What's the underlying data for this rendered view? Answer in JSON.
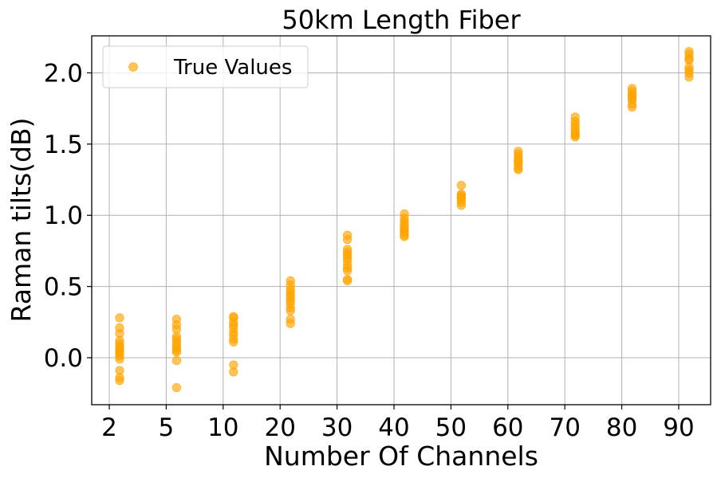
{
  "chart_data": {
    "type": "scatter",
    "title": "50km Length Fiber",
    "xlabel": "Number Of Channels",
    "ylabel": "Raman tilts(dB)",
    "x_tick_labels": [
      "2",
      "5",
      "10",
      "20",
      "30",
      "40",
      "50",
      "60",
      "70",
      "80",
      "90"
    ],
    "y_ticks": [
      0.0,
      0.5,
      1.0,
      1.5,
      2.0
    ],
    "y_tick_labels": [
      "0.0",
      "0.5",
      "1.0",
      "1.5",
      "2.0"
    ],
    "ylim": [
      -0.33,
      2.26
    ],
    "grid": true,
    "legend": {
      "position": "top-left",
      "entries": [
        "True Values"
      ]
    },
    "series": [
      {
        "name": "True Values",
        "color": "#ffa500",
        "groups": [
          {
            "x": "2",
            "y": [
              0.28,
              0.21,
              0.17,
              0.12,
              0.1,
              0.08,
              0.07,
              0.05,
              0.04,
              0.03,
              0.01,
              -0.01,
              -0.09,
              -0.14,
              -0.16
            ]
          },
          {
            "x": "5",
            "y": [
              0.27,
              0.23,
              0.2,
              0.15,
              0.13,
              0.11,
              0.09,
              0.07,
              0.05,
              0.04,
              -0.02,
              -0.21
            ]
          },
          {
            "x": "10",
            "y": [
              0.29,
              0.28,
              0.25,
              0.23,
              0.21,
              0.18,
              0.16,
              0.13,
              0.11,
              -0.05,
              -0.1
            ]
          },
          {
            "x": "20",
            "y": [
              0.54,
              0.51,
              0.48,
              0.46,
              0.44,
              0.42,
              0.4,
              0.38,
              0.35,
              0.33,
              0.27,
              0.24
            ]
          },
          {
            "x": "30",
            "y": [
              0.86,
              0.83,
              0.76,
              0.74,
              0.72,
              0.7,
              0.68,
              0.65,
              0.63,
              0.61,
              0.55,
              0.54
            ]
          },
          {
            "x": "40",
            "y": [
              1.01,
              0.98,
              0.96,
              0.94,
              0.92,
              0.91,
              0.9,
              0.89,
              0.88,
              0.86,
              0.85
            ]
          },
          {
            "x": "50",
            "y": [
              1.21,
              1.15,
              1.14,
              1.13,
              1.12,
              1.11,
              1.09,
              1.07
            ]
          },
          {
            "x": "60",
            "y": [
              1.45,
              1.43,
              1.41,
              1.39,
              1.38,
              1.37,
              1.35,
              1.33,
              1.32
            ]
          },
          {
            "x": "70",
            "y": [
              1.69,
              1.66,
              1.64,
              1.62,
              1.6,
              1.58,
              1.57,
              1.56,
              1.55
            ]
          },
          {
            "x": "80",
            "y": [
              1.89,
              1.87,
              1.85,
              1.84,
              1.82,
              1.81,
              1.78,
              1.76
            ]
          },
          {
            "x": "90",
            "y": [
              2.15,
              2.13,
              2.1,
              2.09,
              2.04,
              2.02,
              2.0,
              1.97
            ]
          }
        ]
      }
    ]
  }
}
